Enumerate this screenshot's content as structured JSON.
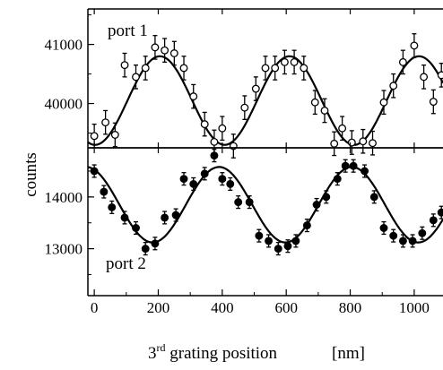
{
  "chart_data": [
    {
      "type": "scatter",
      "panel": "top",
      "label": "port 1",
      "marker": "open-circle",
      "xlim": [
        -20,
        1090
      ],
      "ylim": [
        39250,
        41600
      ],
      "yticks": [
        40000,
        41000
      ],
      "ytick_labels": [
        "40000",
        "41000"
      ],
      "fit": {
        "mean": 40050,
        "amplitude": 750,
        "period": 405,
        "peak_x": 205
      },
      "series": [
        {
          "x": [
            0,
            35,
            65,
            95,
            130,
            160,
            190,
            220,
            250,
            280,
            310,
            345,
            375,
            400,
            435,
            470,
            505,
            535,
            565,
            595,
            625,
            655,
            690,
            720,
            750,
            775,
            805,
            840,
            870,
            905,
            935,
            965,
            1000,
            1030,
            1060,
            1085
          ],
          "y": [
            39450,
            39680,
            39470,
            40650,
            40450,
            40600,
            40950,
            40900,
            40850,
            40600,
            40120,
            39650,
            39350,
            39580,
            39280,
            39930,
            40250,
            40600,
            40600,
            40700,
            40700,
            40600,
            40020,
            39880,
            39320,
            39580,
            39340,
            39360,
            39330,
            40020,
            40300,
            40700,
            40980,
            40450,
            40030,
            40480
          ],
          "yerr": 200
        }
      ]
    },
    {
      "type": "scatter",
      "panel": "bottom",
      "label": "port 2",
      "marker": "filled-circle",
      "xlim": [
        -20,
        1090
      ],
      "ylim": [
        12300,
        14950
      ],
      "yticks": [
        13000,
        14000
      ],
      "ytick_labels": [
        "13000",
        "14000"
      ],
      "fit": {
        "mean": 13850,
        "amplitude": 730,
        "period": 415,
        "peak_x": 390
      },
      "series": [
        {
          "x": [
            0,
            30,
            55,
            95,
            130,
            160,
            190,
            220,
            255,
            280,
            310,
            345,
            375,
            400,
            425,
            450,
            485,
            515,
            545,
            575,
            605,
            630,
            665,
            695,
            725,
            760,
            785,
            810,
            845,
            875,
            905,
            935,
            965,
            995,
            1025,
            1060,
            1085
          ],
          "y": [
            14500,
            14100,
            13800,
            13600,
            13400,
            13000,
            13100,
            13600,
            13650,
            14350,
            14250,
            14450,
            14800,
            14350,
            14250,
            13900,
            13900,
            13250,
            13150,
            13000,
            13050,
            13150,
            13450,
            13850,
            14000,
            14350,
            14600,
            14600,
            14500,
            14000,
            13400,
            13250,
            13150,
            13150,
            13300,
            13550,
            13700
          ],
          "yerr": 120
        }
      ]
    }
  ],
  "shared_x": {
    "ticks": [
      0,
      200,
      400,
      600,
      800,
      1000
    ],
    "tick_labels": [
      "0",
      "200",
      "400",
      "600",
      "800",
      "1000"
    ]
  },
  "ylabel": "counts",
  "xlabel": {
    "prefix": "3",
    "superscript": "rd",
    "main": " grating position",
    "unit": "[nm]"
  }
}
